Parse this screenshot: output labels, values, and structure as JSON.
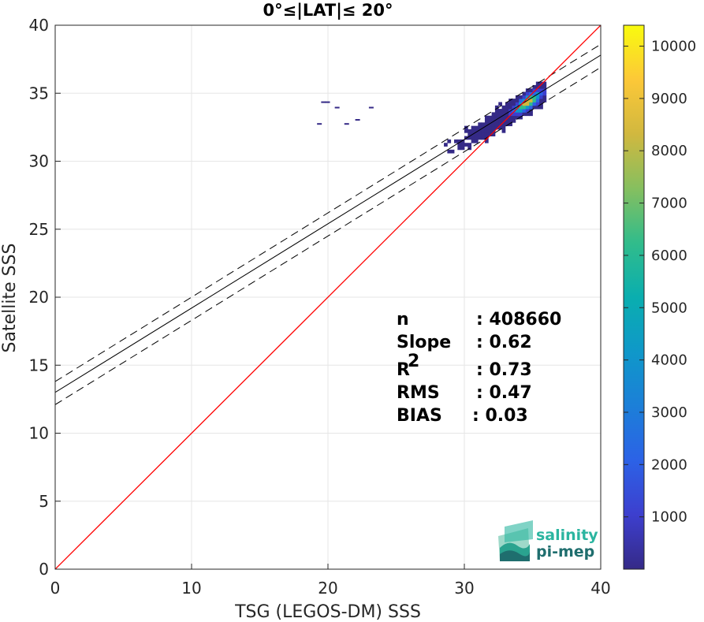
{
  "chart_data": {
    "type": "heatmap",
    "title": "0°≤|LAT|≤ 20°",
    "xlabel": "TSG (LEGOS-DM) SSS",
    "ylabel": "Satellite SSS",
    "xlim": [
      0,
      40
    ],
    "ylim": [
      0,
      40
    ],
    "xticks": [
      "0",
      "10",
      "20",
      "30",
      "40"
    ],
    "yticks": [
      "0",
      "5",
      "10",
      "15",
      "20",
      "25",
      "30",
      "35",
      "40"
    ],
    "grid": true,
    "colorbar": {
      "range": [
        0,
        10400
      ],
      "ticks": [
        "1000",
        "2000",
        "3000",
        "4000",
        "5000",
        "6000",
        "7000",
        "8000",
        "9000",
        "10000"
      ],
      "colormap": "parula"
    },
    "lines": {
      "identity": {
        "slope": 1,
        "intercept": 0,
        "color": "#ff0000"
      },
      "regression": {
        "slope": 0.62,
        "intercept": 13.0,
        "color": "#000000"
      },
      "upper_bound": {
        "slope": 0.62,
        "intercept": 13.8,
        "style": "dashed"
      },
      "lower_bound": {
        "slope": 0.62,
        "intercept": 12.1,
        "style": "dashed"
      }
    },
    "stats": [
      {
        "label": "n",
        "value": ": 408660"
      },
      {
        "label": "Slope",
        "value": ": 0.62"
      },
      {
        "label": "R",
        "sup": "2",
        "value": ": 0.73"
      },
      {
        "label": "RMS",
        "value": ": 0.47"
      },
      {
        "label": "BIAS",
        "value": ": 0.03"
      }
    ],
    "density_center": {
      "x": 34.5,
      "y": 34.2
    }
  },
  "logo": {
    "line1": "salinity",
    "line2": "pi-mep",
    "color1": "#2bb5a0",
    "color2": "#1f6e6e"
  }
}
